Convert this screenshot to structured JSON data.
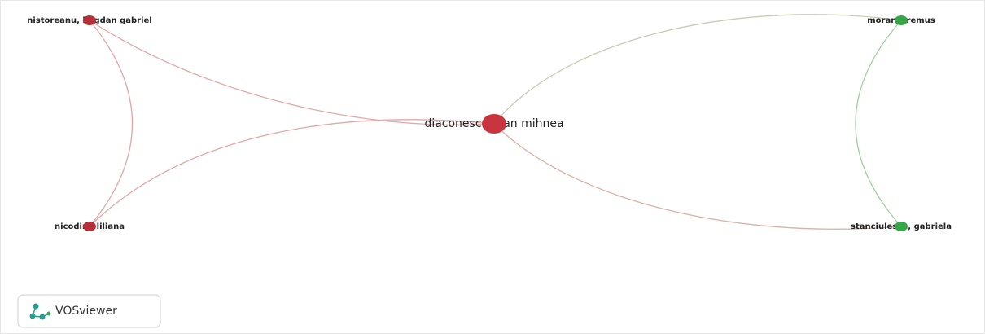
{
  "nodes": [
    {
      "label": "nistoreanu, bogdan gabriel"
    },
    {
      "label": "diaconescu, dan mihnea"
    },
    {
      "label": "nicodim, liliana"
    },
    {
      "label": "moraru, remus"
    },
    {
      "label": "stanciulescu, gabriela"
    }
  ],
  "logo": {
    "text": "VOSviewer"
  }
}
